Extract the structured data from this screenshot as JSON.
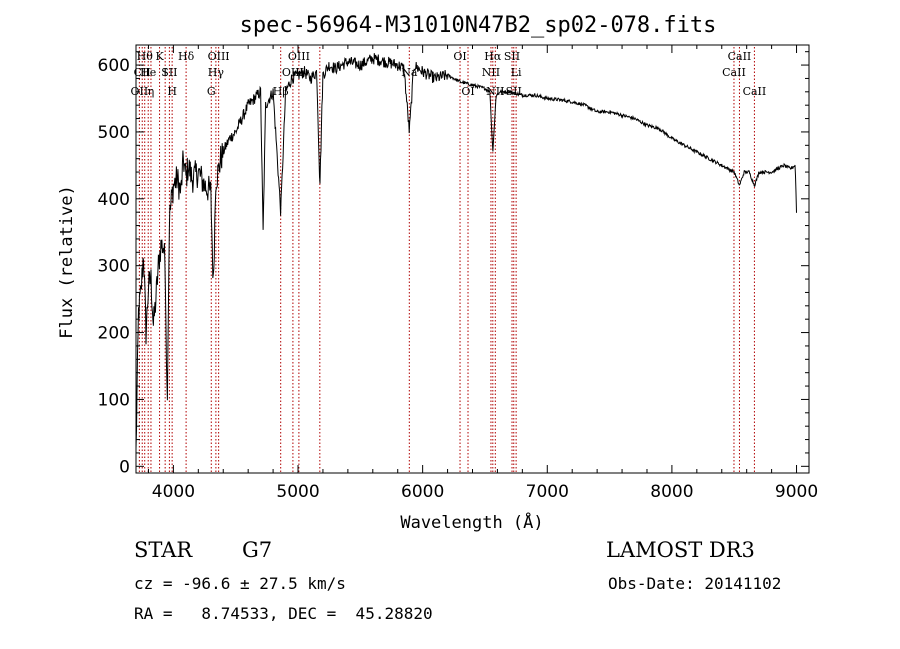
{
  "chart_data": {
    "type": "line",
    "title": "spec-56964-M31010N47B2_sp02-078.fits",
    "xlabel": "Wavelength (Å)",
    "ylabel": "Flux (relative)",
    "xlim": [
      3700,
      9100
    ],
    "ylim": [
      -10,
      630
    ],
    "xticks": [
      4000,
      5000,
      6000,
      7000,
      8000,
      9000
    ],
    "yticks": [
      0,
      100,
      200,
      300,
      400,
      500,
      600
    ],
    "series": [
      {
        "name": "flux",
        "x": [
          3700,
          3720,
          3740,
          3760,
          3780,
          3800,
          3820,
          3840,
          3860,
          3880,
          3900,
          3920,
          3935,
          3950,
          3968,
          3985,
          4000,
          4030,
          4060,
          4080,
          4101,
          4120,
          4150,
          4200,
          4250,
          4300,
          4320,
          4340,
          4360,
          4380,
          4400,
          4450,
          4500,
          4550,
          4600,
          4650,
          4700,
          4720,
          4740,
          4800,
          4861,
          4900,
          4950,
          5000,
          5050,
          5100,
          5150,
          5175,
          5200,
          5250,
          5300,
          5400,
          5500,
          5600,
          5700,
          5800,
          5850,
          5893,
          5930,
          6000,
          6050,
          6100,
          6200,
          6300,
          6400,
          6500,
          6540,
          6563,
          6590,
          6620,
          6700,
          6800,
          6900,
          7000,
          7100,
          7200,
          7300,
          7400,
          7500,
          7600,
          7700,
          7800,
          7900,
          8000,
          8100,
          8200,
          8300,
          8400,
          8500,
          8542,
          8580,
          8620,
          8662,
          8700,
          8800,
          8900,
          8950,
          8990,
          9000
        ],
        "y": [
          20,
          230,
          260,
          320,
          200,
          270,
          280,
          210,
          250,
          300,
          330,
          330,
          300,
          90,
          370,
          400,
          420,
          430,
          410,
          460,
          430,
          450,
          430,
          440,
          420,
          410,
          270,
          430,
          440,
          460,
          470,
          490,
          500,
          520,
          540,
          550,
          560,
          350,
          540,
          560,
          380,
          560,
          580,
          585,
          590,
          580,
          590,
          420,
          585,
          600,
          595,
          605,
          600,
          610,
          605,
          600,
          595,
          500,
          600,
          590,
          585,
          580,
          585,
          575,
          570,
          565,
          560,
          470,
          555,
          560,
          560,
          555,
          555,
          550,
          548,
          545,
          540,
          530,
          530,
          525,
          520,
          510,
          505,
          490,
          480,
          470,
          460,
          450,
          440,
          420,
          440,
          440,
          420,
          440,
          440,
          450,
          445,
          450,
          380
        ]
      }
    ],
    "lines": [
      {
        "x": 3727,
        "label": "OII",
        "row": 3
      },
      {
        "x": 3750,
        "label": "CII",
        "row": 2
      },
      {
        "x": 3770,
        "label": "Hθ",
        "row": 1
      },
      {
        "x": 3798,
        "label": "He",
        "row": 2
      },
      {
        "x": 3820,
        "label": "η",
        "row": 3
      },
      {
        "x": 3889,
        "label": "K",
        "row": 1
      },
      {
        "x": 3934,
        "label": "I",
        "row": 2
      },
      {
        "x": 3968,
        "label": "SII",
        "row": 2
      },
      {
        "x": 3990,
        "label": "H",
        "row": 3
      },
      {
        "x": 4102,
        "label": "Hδ",
        "row": 1
      },
      {
        "x": 4304,
        "label": "G",
        "row": 3
      },
      {
        "x": 4341,
        "label": "Hγ",
        "row": 2
      },
      {
        "x": 4363,
        "label": "OIII",
        "row": 1
      },
      {
        "x": 4861,
        "label": "Hβ",
        "row": 3
      },
      {
        "x": 4959,
        "label": "OIII",
        "row": 2
      },
      {
        "x": 5007,
        "label": "OIII",
        "row": 1
      },
      {
        "x": 5175,
        "label": "",
        "row": 0
      },
      {
        "x": 5893,
        "label": "Na",
        "row": 2
      },
      {
        "x": 6300,
        "label": "OI",
        "row": 1
      },
      {
        "x": 6364,
        "label": "OI",
        "row": 3
      },
      {
        "x": 6548,
        "label": "NII",
        "row": 2
      },
      {
        "x": 6563,
        "label": "Hα",
        "row": 1
      },
      {
        "x": 6583,
        "label": "NII",
        "row": 3
      },
      {
        "x": 6717,
        "label": "SII",
        "row": 1
      },
      {
        "x": 6731,
        "label": "SII",
        "row": 3
      },
      {
        "x": 6750,
        "label": "Li",
        "row": 2
      },
      {
        "x": 8498,
        "label": "CaII",
        "row": 2
      },
      {
        "x": 8542,
        "label": "CaII",
        "row": 1
      },
      {
        "x": 8662,
        "label": "CaII",
        "row": 3
      }
    ]
  },
  "info": {
    "object_class": "STAR",
    "subclass": "G7",
    "survey": "LAMOST DR3",
    "cz": "cz = -96.6 ± 27.5 km/s",
    "obs_date": "Obs-Date: 20141102",
    "radec": "RA =   8.74533, DEC =  45.28820"
  },
  "colors": {
    "axis": "#000000",
    "spectrum": "#000000",
    "line_marker": "#b00000"
  }
}
